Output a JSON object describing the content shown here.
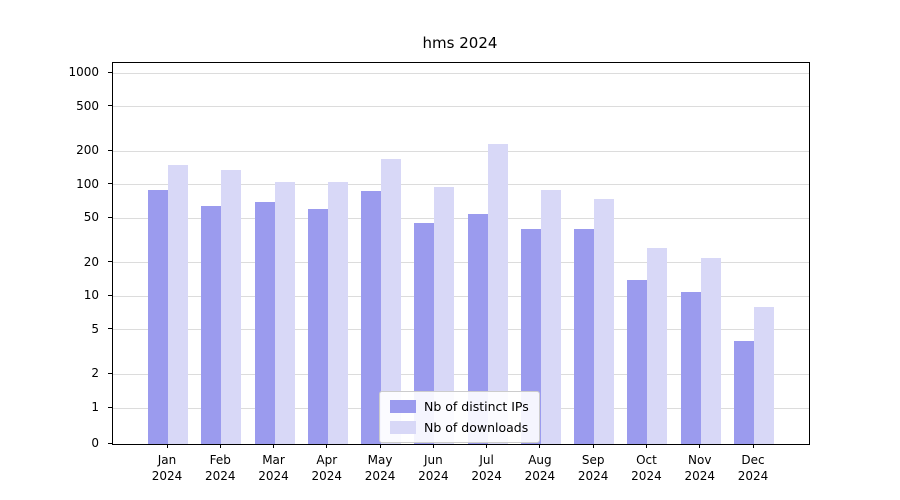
{
  "colors": {
    "background": "#ffffff",
    "grid": "#dcdcdc",
    "axis": "#000000",
    "series_distinct_ips": "#9b9bee",
    "series_downloads": "#d8d8f7"
  },
  "chart_data": {
    "type": "bar",
    "title": "hms 2024",
    "yscale": "symlog",
    "grid": true,
    "legend_position": "lower center",
    "x": [
      "Jan 2024",
      "Feb 2024",
      "Mar 2024",
      "Apr 2024",
      "May 2024",
      "Jun 2024",
      "Jul 2024",
      "Aug 2024",
      "Sep 2024",
      "Oct 2024",
      "Nov 2024",
      "Dec 2024"
    ],
    "yticks": [
      0,
      1,
      2,
      5,
      10,
      20,
      50,
      100,
      200,
      500,
      1000
    ],
    "ylim": [
      0,
      1400
    ],
    "series": [
      {
        "name": "Nb of distinct IPs",
        "color": "#9b9bee",
        "values": [
          90,
          65,
          70,
          60,
          88,
          45,
          55,
          40,
          40,
          14,
          11,
          4
        ]
      },
      {
        "name": "Nb of downloads",
        "color": "#d8d8f7",
        "values": [
          150,
          135,
          105,
          105,
          170,
          95,
          230,
          90,
          75,
          27,
          22,
          8
        ]
      }
    ]
  }
}
